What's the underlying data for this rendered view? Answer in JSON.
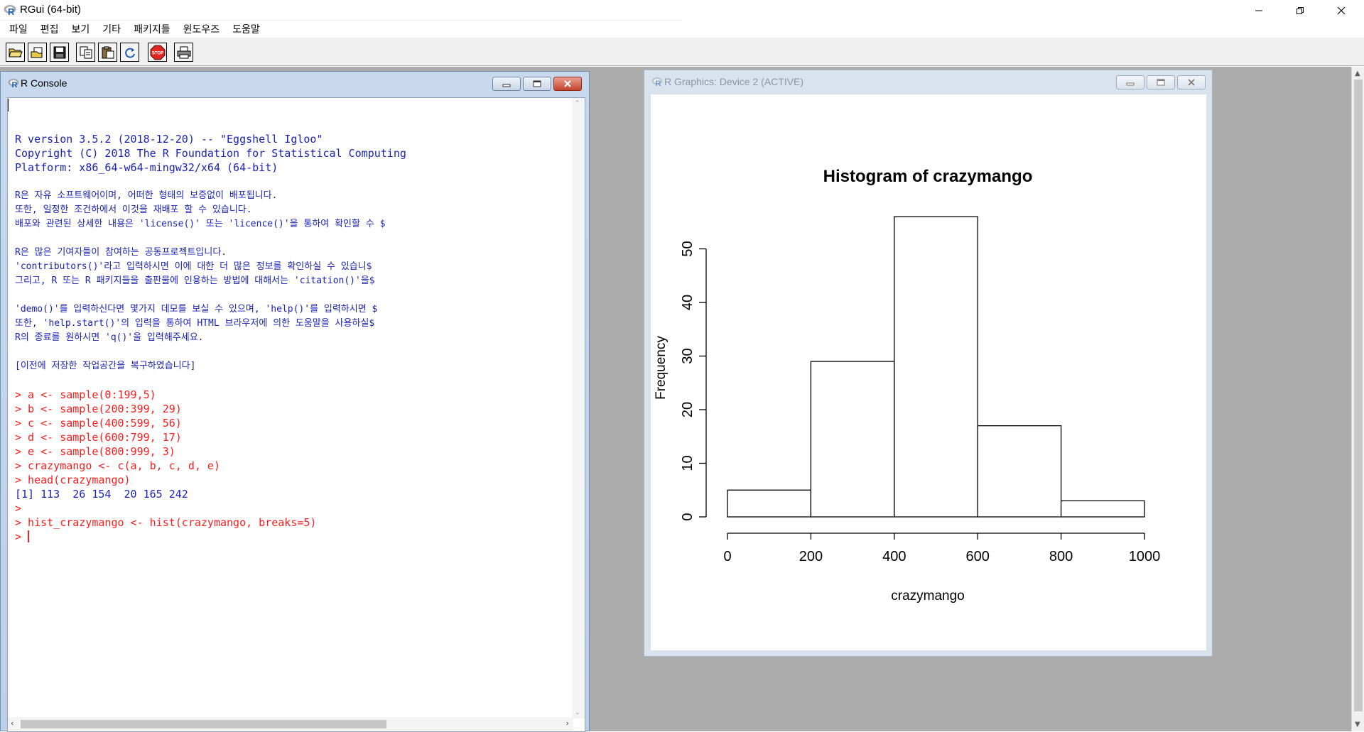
{
  "app": {
    "title": "RGui (64-bit)"
  },
  "menu": [
    "파일",
    "편집",
    "보기",
    "기타",
    "패키지들",
    "윈도우즈",
    "도움말"
  ],
  "toolbar": {
    "buttons": [
      "open-script",
      "load-workspace",
      "save-workspace",
      "copy",
      "paste",
      "copy-and-paste",
      "stop",
      "print"
    ],
    "stop_label": "STOP"
  },
  "console": {
    "title": "R Console",
    "lines": [
      {
        "text": "",
        "style": "blue"
      },
      {
        "text": "R version 3.5.2 (2018-12-20) -- \"Eggshell Igloo\"",
        "style": "blue"
      },
      {
        "text": "Copyright (C) 2018 The R Foundation for Statistical Computing",
        "style": "blue"
      },
      {
        "text": "Platform: x86_64-w64-mingw32/x64 (64-bit)",
        "style": "blue"
      },
      {
        "text": "",
        "style": "blue"
      },
      {
        "text": "R은 자유 소프트웨어이며, 어떠한 형태의 보증없이 배포됩니다.",
        "style": "blue"
      },
      {
        "text": "또한, 일정한 조건하에서 이것을 재배포 할 수 있습니다.",
        "style": "blue"
      },
      {
        "text": "배포와 관련된 상세한 내용은 'license()' 또는 'licence()'을 통하여 확인할 수 $",
        "style": "blue"
      },
      {
        "text": "",
        "style": "blue"
      },
      {
        "text": "R은 많은 기여자들이 참여하는 공동프로젝트입니다.",
        "style": "blue"
      },
      {
        "text": "'contributors()'라고 입력하시면 이에 대한 더 많은 정보를 확인하실 수 있습니$",
        "style": "blue"
      },
      {
        "text": "그리고, R 또는 R 패키지들을 출판물에 인용하는 방법에 대해서는 'citation()'을$",
        "style": "blue"
      },
      {
        "text": "",
        "style": "blue"
      },
      {
        "text": "'demo()'를 입력하신다면 몇가지 데모를 보실 수 있으며, 'help()'를 입력하시면 $",
        "style": "blue"
      },
      {
        "text": "또한, 'help.start()'의 입력을 통하여 HTML 브라우저에 의한 도움말을 사용하실$",
        "style": "blue"
      },
      {
        "text": "R의 종료를 원하시면 'q()'을 입력해주세요.",
        "style": "blue"
      },
      {
        "text": "",
        "style": "blue"
      },
      {
        "text": "[이전에 저장한 작업공간을 복구하였습니다]",
        "style": "blue"
      },
      {
        "text": "",
        "style": "blue"
      },
      {
        "text": "> a <- sample(0:199,5)",
        "style": "red"
      },
      {
        "text": "> b <- sample(200:399, 29)",
        "style": "red"
      },
      {
        "text": "> c <- sample(400:599, 56)",
        "style": "red"
      },
      {
        "text": "> d <- sample(600:799, 17)",
        "style": "red"
      },
      {
        "text": "> e <- sample(800:999, 3)",
        "style": "red"
      },
      {
        "text": "> crazymango <- c(a, b, c, d, e)",
        "style": "red"
      },
      {
        "text": "> head(crazymango)",
        "style": "red"
      },
      {
        "text": "[1] 113  26 154  20 165 242",
        "style": "blue"
      },
      {
        "text": ">",
        "style": "red"
      },
      {
        "text": "> hist_crazymango <- hist(crazymango, breaks=5)",
        "style": "red"
      }
    ],
    "prompt": "> "
  },
  "graphics": {
    "title": "R Graphics: Device 2 (ACTIVE)"
  },
  "chart_data": {
    "type": "bar",
    "title": "Histogram of crazymango",
    "xlabel": "crazymango",
    "ylabel": "Frequency",
    "bins": [
      [
        0,
        200
      ],
      [
        200,
        400
      ],
      [
        400,
        600
      ],
      [
        600,
        800
      ],
      [
        800,
        1000
      ]
    ],
    "values": [
      5,
      29,
      56,
      17,
      3
    ],
    "xlim": [
      0,
      1000
    ],
    "ylim": [
      0,
      56
    ],
    "xticks": [
      "0",
      "200",
      "400",
      "600",
      "800",
      "1000"
    ],
    "yticks": [
      "0",
      "10",
      "20",
      "30",
      "40",
      "50"
    ],
    "grid": false,
    "legend": "none"
  }
}
